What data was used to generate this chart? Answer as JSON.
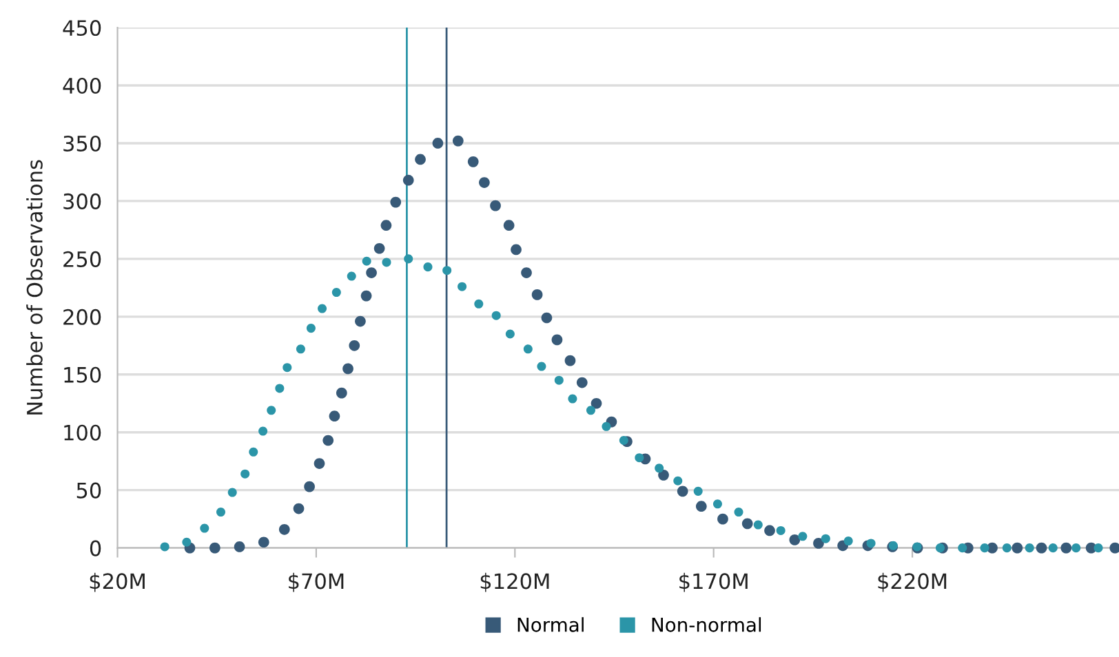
{
  "chart_data": {
    "type": "scatter",
    "ylabel": "Number of Observations",
    "marker": "circle",
    "grid": "y",
    "legend": "bottom",
    "xlim": [
      20,
      272
    ],
    "xticks": [
      {
        "value": 20,
        "label": "$20M"
      },
      {
        "value": 70,
        "label": "$70M"
      },
      {
        "value": 120,
        "label": "$120M"
      },
      {
        "value": 170,
        "label": "$170M"
      },
      {
        "value": 220,
        "label": "$220M"
      }
    ],
    "ylim": [
      0,
      450
    ],
    "yticks": [
      0,
      50,
      100,
      150,
      200,
      250,
      300,
      350,
      400,
      450
    ],
    "ref_lines": [
      {
        "axis": "x",
        "value": 92.8,
        "color": "#2b95a8"
      },
      {
        "axis": "x",
        "value": 102.8,
        "color": "#385a78"
      }
    ],
    "series": [
      {
        "name": "Normal",
        "color": "#385a78",
        "x": [
          38.2,
          44.5,
          50.7,
          56.8,
          62.0,
          65.6,
          68.3,
          70.8,
          73.0,
          74.6,
          76.4,
          78.0,
          79.6,
          81.1,
          82.6,
          83.9,
          85.9,
          87.6,
          90.0,
          93.2,
          96.2,
          100.6,
          105.7,
          109.5,
          112.3,
          115.1,
          118.5,
          120.3,
          122.9,
          125.6,
          128.0,
          130.6,
          133.9,
          136.9,
          140.5,
          144.3,
          148.2,
          152.8,
          157.4,
          162.2,
          166.9,
          172.3,
          178.5,
          184.1,
          190.4,
          196.4,
          202.5,
          208.8,
          215.0,
          221.3,
          227.6,
          234.0,
          240.1,
          246.4,
          252.5,
          258.7,
          265.0,
          271.0
        ],
        "values": [
          0,
          0,
          1,
          5,
          16,
          34,
          53,
          73,
          93,
          114,
          134,
          155,
          175,
          196,
          218,
          238,
          259,
          279,
          299,
          318,
          336,
          350,
          352,
          334,
          316,
          296,
          279,
          258,
          238,
          219,
          199,
          180,
          162,
          143,
          125,
          109,
          92,
          77,
          63,
          49,
          36,
          25,
          21,
          15,
          7,
          4,
          2,
          2,
          1,
          0,
          0,
          0,
          0,
          0,
          0,
          0,
          0,
          0
        ]
      },
      {
        "name": "Non-normal",
        "color": "#2b95a8",
        "x": [
          31.9,
          37.4,
          41.9,
          46.0,
          48.9,
          52.1,
          54.2,
          56.6,
          58.7,
          60.8,
          62.7,
          66.1,
          68.7,
          71.5,
          75.1,
          78.9,
          82.7,
          87.7,
          93.2,
          98.1,
          102.9,
          106.7,
          110.9,
          115.3,
          118.8,
          123.3,
          126.7,
          131.1,
          134.5,
          139.1,
          143.0,
          147.4,
          151.3,
          156.3,
          161.0,
          166.1,
          171.0,
          176.3,
          181.2,
          186.9,
          192.4,
          198.2,
          203.9,
          209.6,
          215.2,
          221.2,
          227.0,
          232.6,
          238.2,
          243.8,
          249.5,
          255.4,
          261.2,
          266.8
        ],
        "values": [
          1,
          5,
          17,
          31,
          48,
          64,
          83,
          101,
          119,
          138,
          156,
          172,
          190,
          207,
          221,
          235,
          248,
          247,
          250,
          243,
          240,
          226,
          211,
          201,
          185,
          172,
          157,
          145,
          129,
          119,
          105,
          93,
          78,
          69,
          58,
          49,
          38,
          31,
          20,
          15,
          10,
          8,
          6,
          4,
          2,
          1,
          0,
          0,
          0,
          0,
          0,
          0,
          0,
          0
        ]
      }
    ]
  }
}
